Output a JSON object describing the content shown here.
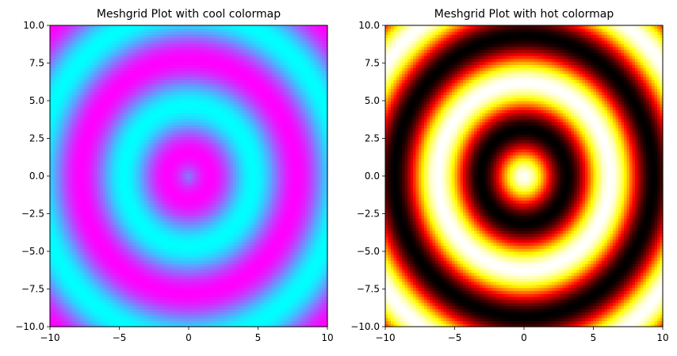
{
  "chart_data": [
    {
      "type": "heatmap",
      "title": "Meshgrid Plot with cool colormap",
      "colormap": "cool",
      "function": "sin(sqrt(x^2 + y^2))",
      "grid": false,
      "xlim": [
        -10,
        10
      ],
      "ylim": [
        -10,
        10
      ],
      "resolution": 100,
      "xticks": [
        -10,
        -5,
        0,
        5,
        10
      ],
      "yticks": [
        -10.0,
        -7.5,
        -5.0,
        -2.5,
        0.0,
        2.5,
        5.0,
        7.5,
        10.0
      ],
      "xtick_labels": [
        "−10",
        "−5",
        "0",
        "5",
        "10"
      ],
      "ytick_labels": [
        "−10.0",
        "−7.5",
        "−5.0",
        "−2.5",
        "0.0",
        "2.5",
        "5.0",
        "7.5",
        "10.0"
      ]
    },
    {
      "type": "heatmap",
      "title": "Meshgrid Plot with hot colormap",
      "colormap": "hot",
      "function": "cos(sqrt(x^2 + y^2))",
      "grid": false,
      "xlim": [
        -10,
        10
      ],
      "ylim": [
        -10,
        10
      ],
      "resolution": 100,
      "xticks": [
        -10,
        -5,
        0,
        5,
        10
      ],
      "yticks": [
        -10.0,
        -7.5,
        -5.0,
        -2.5,
        0.0,
        2.5,
        5.0,
        7.5,
        10.0
      ],
      "xtick_labels": [
        "−10",
        "−5",
        "0",
        "5",
        "10"
      ],
      "ytick_labels": [
        "−10.0",
        "−7.5",
        "−5.0",
        "−2.5",
        "0.0",
        "2.5",
        "5.0",
        "7.5",
        "10.0"
      ]
    }
  ]
}
